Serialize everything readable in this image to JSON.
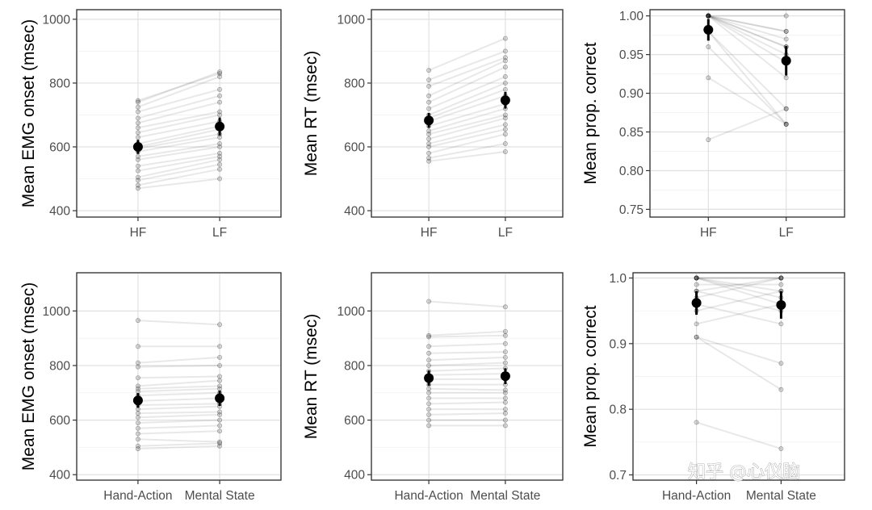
{
  "watermark": "知乎 @心仪脑",
  "chart_data": [
    {
      "type": "scatter",
      "ylabel": "Mean EMG onset (msec)",
      "categories": [
        "HF",
        "LF"
      ],
      "ylim": [
        380,
        1030
      ],
      "yticks": [
        400,
        600,
        800,
        1000
      ],
      "subjects": [
        [
          470,
          500
        ],
        [
          480,
          530
        ],
        [
          495,
          545
        ],
        [
          505,
          560
        ],
        [
          525,
          570
        ],
        [
          540,
          580
        ],
        [
          560,
          600
        ],
        [
          570,
          610
        ],
        [
          585,
          630
        ],
        [
          595,
          640
        ],
        [
          600,
          655
        ],
        [
          610,
          665
        ],
        [
          630,
          680
        ],
        [
          645,
          700
        ],
        [
          660,
          710
        ],
        [
          675,
          740
        ],
        [
          690,
          760
        ],
        [
          710,
          780
        ],
        [
          725,
          820
        ],
        [
          740,
          835
        ],
        [
          745,
          830
        ]
      ],
      "means": [
        600,
        664
      ],
      "ci": [
        [
          578,
          622
        ],
        [
          636,
          692
        ]
      ]
    },
    {
      "type": "scatter",
      "ylabel": "Mean RT (msec)",
      "categories": [
        "HF",
        "LF"
      ],
      "ylim": [
        380,
        1030
      ],
      "yticks": [
        400,
        600,
        800,
        1000
      ],
      "subjects": [
        [
          555,
          585
        ],
        [
          565,
          610
        ],
        [
          580,
          640
        ],
        [
          600,
          655
        ],
        [
          610,
          670
        ],
        [
          625,
          690
        ],
        [
          640,
          700
        ],
        [
          650,
          720
        ],
        [
          665,
          735
        ],
        [
          680,
          760
        ],
        [
          690,
          780
        ],
        [
          700,
          800
        ],
        [
          720,
          820
        ],
        [
          740,
          850
        ],
        [
          760,
          870
        ],
        [
          790,
          880
        ],
        [
          810,
          900
        ],
        [
          840,
          940
        ]
      ],
      "means": [
        683,
        746
      ],
      "ci": [
        [
          660,
          706
        ],
        [
          720,
          772
        ]
      ]
    },
    {
      "type": "scatter",
      "ylabel": "Mean prop. correct",
      "categories": [
        "HF",
        "LF"
      ],
      "ylim": [
        0.74,
        1.008
      ],
      "yticks": [
        0.75,
        0.8,
        0.85,
        0.9,
        0.95,
        1.0
      ],
      "tick_labels": [
        "0.75",
        "0.80",
        "0.85",
        "0.90",
        "0.95",
        "1.00"
      ],
      "subjects": [
        [
          1.0,
          1.0
        ],
        [
          1.0,
          0.98
        ],
        [
          1.0,
          0.96
        ],
        [
          1.0,
          0.96
        ],
        [
          1.0,
          0.95
        ],
        [
          1.0,
          0.94
        ],
        [
          1.0,
          0.92
        ],
        [
          0.98,
          0.88
        ],
        [
          0.98,
          0.86
        ],
        [
          0.96,
          0.86
        ],
        [
          0.92,
          0.86
        ],
        [
          0.84,
          0.88
        ],
        [
          1.0,
          0.97
        ],
        [
          1.0,
          0.98
        ]
      ],
      "means": [
        0.982,
        0.942
      ],
      "ci": [
        [
          0.968,
          0.996
        ],
        [
          0.923,
          0.961
        ]
      ]
    },
    {
      "type": "scatter",
      "ylabel": "Mean EMG onset (msec)",
      "categories": [
        "Hand-Action",
        "Mental State"
      ],
      "ylim": [
        380,
        1140
      ],
      "yticks": [
        400,
        600,
        800,
        1000
      ],
      "subjects": [
        [
          495,
          505
        ],
        [
          505,
          515
        ],
        [
          530,
          520
        ],
        [
          550,
          560
        ],
        [
          570,
          580
        ],
        [
          590,
          600
        ],
        [
          610,
          620
        ],
        [
          625,
          630
        ],
        [
          640,
          650
        ],
        [
          655,
          660
        ],
        [
          670,
          680
        ],
        [
          690,
          700
        ],
        [
          705,
          715
        ],
        [
          715,
          725
        ],
        [
          725,
          745
        ],
        [
          755,
          760
        ],
        [
          795,
          800
        ],
        [
          810,
          830
        ],
        [
          870,
          870
        ],
        [
          965,
          950
        ]
      ],
      "means": [
        672,
        680
      ],
      "ci": [
        [
          645,
          699
        ],
        [
          652,
          708
        ]
      ]
    },
    {
      "type": "scatter",
      "ylabel": "Mean RT (msec)",
      "categories": [
        "Hand-Action",
        "Mental State"
      ],
      "ylim": [
        380,
        1140
      ],
      "yticks": [
        400,
        600,
        800,
        1000
      ],
      "subjects": [
        [
          580,
          580
        ],
        [
          600,
          600
        ],
        [
          620,
          625
        ],
        [
          640,
          640
        ],
        [
          660,
          665
        ],
        [
          680,
          680
        ],
        [
          700,
          700
        ],
        [
          715,
          710
        ],
        [
          730,
          730
        ],
        [
          750,
          750
        ],
        [
          765,
          770
        ],
        [
          780,
          790
        ],
        [
          800,
          810
        ],
        [
          820,
          830
        ],
        [
          845,
          850
        ],
        [
          870,
          880
        ],
        [
          905,
          910
        ],
        [
          910,
          925
        ],
        [
          1035,
          1015
        ]
      ],
      "means": [
        754,
        761
      ],
      "ci": [
        [
          726,
          782
        ],
        [
          732,
          790
        ]
      ]
    },
    {
      "type": "scatter",
      "ylabel": "Mean prop. correct",
      "categories": [
        "Hand-Action",
        "Mental State"
      ],
      "ylim": [
        0.692,
        1.008
      ],
      "yticks": [
        0.7,
        0.8,
        0.9,
        1.0
      ],
      "tick_labels": [
        "0.7",
        "0.8",
        "0.9",
        "1.0"
      ],
      "subjects": [
        [
          1.0,
          1.0
        ],
        [
          1.0,
          1.0
        ],
        [
          1.0,
          0.98
        ],
        [
          1.0,
          0.97
        ],
        [
          0.98,
          1.0
        ],
        [
          0.98,
          0.95
        ],
        [
          0.96,
          0.93
        ],
        [
          0.95,
          0.98
        ],
        [
          0.93,
          0.96
        ],
        [
          0.91,
          0.87
        ],
        [
          0.91,
          0.83
        ],
        [
          0.78,
          0.74
        ],
        [
          1.0,
          0.96
        ],
        [
          0.97,
          1.0
        ],
        [
          0.99,
          0.99
        ]
      ],
      "means": [
        0.962,
        0.959
      ],
      "ci": [
        [
          0.944,
          0.98
        ],
        [
          0.938,
          0.98
        ]
      ]
    }
  ]
}
